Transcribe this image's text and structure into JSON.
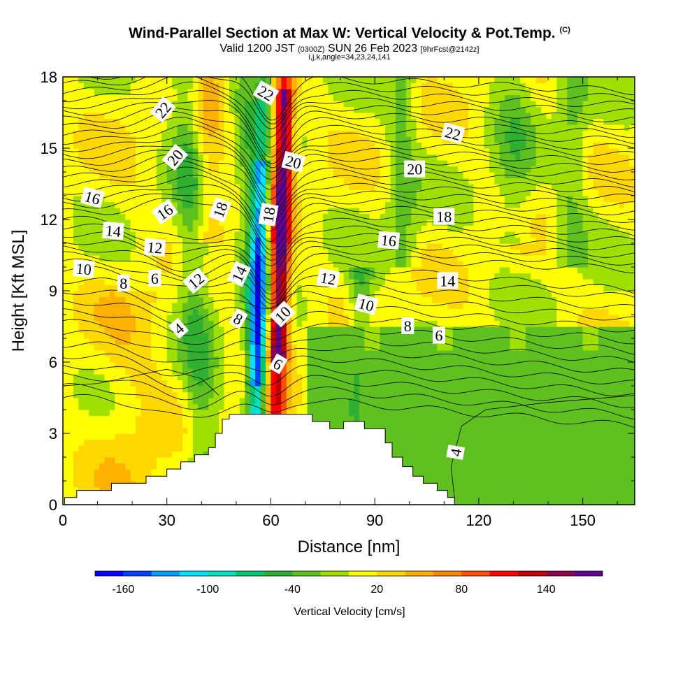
{
  "header": {
    "title": "Wind-Parallel Section at Max W: Vertical Velocity & Pot.Temp.",
    "title_mark": "(C)",
    "valid_prefix": "Valid 1200 JST",
    "valid_utc": "(0300Z)",
    "valid_date": "SUN 26 Feb 2023",
    "forecast": "[9hrFcst@2142z]",
    "indices": "i,j,k,angle=34,23,24,141"
  },
  "chart_data": {
    "type": "heatmap",
    "xlabel": "Distance [nm]",
    "ylabel": "Height [Kft MSL]",
    "xlim": [
      0,
      165
    ],
    "ylim": [
      0,
      18
    ],
    "x_ticks": [
      "0",
      "30",
      "60",
      "90",
      "120",
      "150"
    ],
    "x_tick_values": [
      0,
      30,
      60,
      90,
      120,
      150
    ],
    "y_ticks": [
      "0",
      "3",
      "6",
      "9",
      "12",
      "15",
      "18"
    ],
    "y_tick_values": [
      0,
      3,
      6,
      9,
      12,
      15,
      18
    ],
    "colorbar": {
      "label": "Vertical Velocity [cm/s]",
      "tick_labels": [
        "-160",
        "-100",
        "-40",
        "20",
        "80",
        "140"
      ],
      "tick_values": [
        -160,
        -100,
        -40,
        20,
        80,
        140
      ],
      "min": -180,
      "max": 180,
      "step": 20,
      "colors": [
        "#0000ff",
        "#0040ff",
        "#00a0ff",
        "#00e0ff",
        "#00e0c0",
        "#00c870",
        "#30b030",
        "#60c020",
        "#a0e000",
        "#ffff00",
        "#ffd800",
        "#ffb000",
        "#ff8800",
        "#ff5000",
        "#ff0000",
        "#c00000",
        "#900050",
        "#600090"
      ]
    },
    "terrain": [
      [
        0.5,
        0.3
      ],
      [
        4,
        0.3
      ],
      [
        4,
        0.6
      ],
      [
        14,
        0.6
      ],
      [
        14,
        0.9
      ],
      [
        24,
        0.9
      ],
      [
        24,
        1.2
      ],
      [
        30,
        1.2
      ],
      [
        30,
        1.5
      ],
      [
        34,
        1.5
      ],
      [
        34,
        1.8
      ],
      [
        38,
        1.8
      ],
      [
        38,
        2.1
      ],
      [
        42,
        2.1
      ],
      [
        42,
        2.4
      ],
      [
        44,
        2.4
      ],
      [
        44,
        3.0
      ],
      [
        46,
        3.0
      ],
      [
        46,
        3.6
      ],
      [
        48,
        3.6
      ],
      [
        48,
        3.8
      ],
      [
        72,
        3.8
      ],
      [
        72,
        3.5
      ],
      [
        77,
        3.5
      ],
      [
        77,
        3.2
      ],
      [
        81,
        3.2
      ],
      [
        81,
        3.5
      ],
      [
        87,
        3.5
      ],
      [
        87,
        3.2
      ],
      [
        93,
        3.2
      ],
      [
        93,
        2.6
      ],
      [
        95,
        2.6
      ],
      [
        95,
        2.0
      ],
      [
        98,
        2.0
      ],
      [
        98,
        1.6
      ],
      [
        101,
        1.6
      ],
      [
        101,
        1.2
      ],
      [
        104,
        1.2
      ],
      [
        104,
        0.9
      ],
      [
        108,
        0.9
      ],
      [
        108,
        0.6
      ],
      [
        111,
        0.6
      ],
      [
        111,
        0.3
      ],
      [
        113,
        0.3
      ]
    ],
    "theta_contour_labels": [
      {
        "text": "22",
        "x": 29,
        "y": 16.6,
        "angle": -50
      },
      {
        "text": "20",
        "x": 32.5,
        "y": 14.6,
        "angle": -50
      },
      {
        "text": "16",
        "x": 8.5,
        "y": 12.9,
        "angle": 15
      },
      {
        "text": "16",
        "x": 29.5,
        "y": 12.3,
        "angle": -35
      },
      {
        "text": "14",
        "x": 14.5,
        "y": 11.5,
        "angle": 5
      },
      {
        "text": "12",
        "x": 26.5,
        "y": 10.8,
        "angle": 5
      },
      {
        "text": "10",
        "x": 6,
        "y": 9.9,
        "angle": 5
      },
      {
        "text": "8",
        "x": 17.5,
        "y": 9.3,
        "angle": 0
      },
      {
        "text": "6",
        "x": 26.5,
        "y": 9.5,
        "angle": 0
      },
      {
        "text": "12",
        "x": 38.5,
        "y": 9.4,
        "angle": -40
      },
      {
        "text": "4",
        "x": 33.5,
        "y": 7.4,
        "angle": -40
      },
      {
        "text": "18",
        "x": 45.5,
        "y": 12.4,
        "angle": -70
      },
      {
        "text": "14",
        "x": 51,
        "y": 9.7,
        "angle": -65
      },
      {
        "text": "8",
        "x": 50.5,
        "y": 7.8,
        "angle": 30
      },
      {
        "text": "22",
        "x": 58.5,
        "y": 17.3,
        "angle": 30
      },
      {
        "text": "18",
        "x": 59.5,
        "y": 12.2,
        "angle": -80
      },
      {
        "text": "20",
        "x": 66.5,
        "y": 14.4,
        "angle": 15
      },
      {
        "text": "10",
        "x": 63.5,
        "y": 8.0,
        "angle": -45
      },
      {
        "text": "6",
        "x": 62,
        "y": 5.9,
        "angle": 30
      },
      {
        "text": "12",
        "x": 76.5,
        "y": 9.5,
        "angle": 10
      },
      {
        "text": "10",
        "x": 87.5,
        "y": 8.4,
        "angle": 15
      },
      {
        "text": "8",
        "x": 99.5,
        "y": 7.5,
        "angle": 0
      },
      {
        "text": "6",
        "x": 108.5,
        "y": 7.1,
        "angle": 0
      },
      {
        "text": "16",
        "x": 94,
        "y": 11.1,
        "angle": 5
      },
      {
        "text": "14",
        "x": 111,
        "y": 9.4,
        "angle": 0
      },
      {
        "text": "18",
        "x": 110,
        "y": 12.1,
        "angle": 0
      },
      {
        "text": "20",
        "x": 101.5,
        "y": 14.1,
        "angle": 0
      },
      {
        "text": "22",
        "x": 112.5,
        "y": 15.6,
        "angle": 15
      },
      {
        "text": "4",
        "x": 113.5,
        "y": 2.2,
        "angle": -80
      }
    ]
  }
}
